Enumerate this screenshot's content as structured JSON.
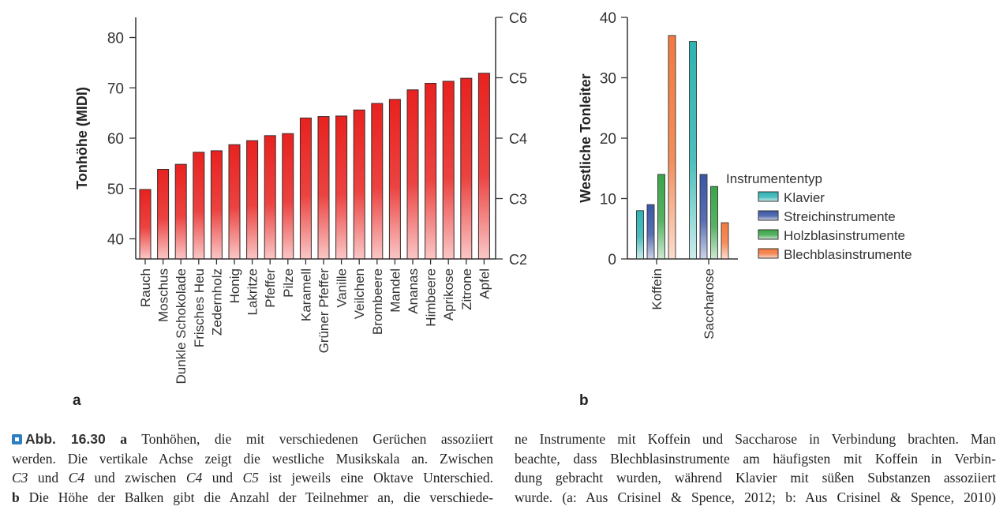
{
  "chart_data": [
    {
      "type": "bar",
      "panel": "a",
      "ylabel": "Tonhöhe (MIDI)",
      "ylim": [
        36,
        84
      ],
      "yticks": [
        40,
        50,
        60,
        70,
        80
      ],
      "secondary_yticks": [
        {
          "value": 36,
          "label": "C2"
        },
        {
          "value": 48,
          "label": "C3"
        },
        {
          "value": 60,
          "label": "C4"
        },
        {
          "value": 72,
          "label": "C5"
        },
        {
          "value": 84,
          "label": "C6"
        }
      ],
      "categories": [
        "Rauch",
        "Moschus",
        "Dunkle Schokolade",
        "Frisches Heu",
        "Zedernholz",
        "Honig",
        "Lakritze",
        "Pfeffer",
        "Pilze",
        "Karamell",
        "Grüner Pfeffer",
        "Vanille",
        "Veilchen",
        "Brombeere",
        "Mandel",
        "Ananas",
        "Himbeere",
        "Aprikose",
        "Zitrone",
        "Apfel"
      ],
      "values": [
        49.8,
        53.8,
        54.8,
        57.2,
        57.5,
        58.7,
        59.5,
        60.5,
        60.9,
        64.0,
        64.3,
        64.4,
        65.6,
        66.9,
        67.7,
        69.6,
        70.9,
        71.3,
        71.9,
        72.9
      ],
      "bar_color": "#e8221f",
      "grid": false
    },
    {
      "type": "bar",
      "panel": "b",
      "ylabel": "Westliche Tonleiter",
      "ylim": [
        0,
        40
      ],
      "yticks": [
        0,
        10,
        20,
        30,
        40
      ],
      "categories": [
        "Koffein",
        "Saccharose"
      ],
      "legend_title": "Instrumententyp",
      "legend_position": "right",
      "series": [
        {
          "name": "Klavier",
          "values": [
            8,
            36
          ],
          "color": "#2fb3b3"
        },
        {
          "name": "Streichinstrumente",
          "values": [
            9,
            14
          ],
          "color": "#3b56a6"
        },
        {
          "name": "Holzblasinstrumente",
          "values": [
            14,
            12
          ],
          "color": "#3aa548"
        },
        {
          "name": "Blechblasinstrumente",
          "values": [
            37,
            6
          ],
          "color": "#f27a3e"
        }
      ],
      "grid": false
    }
  ],
  "panel_labels": {
    "a": "a",
    "b": "b"
  },
  "caption": {
    "label": "Abb. 16.30",
    "left": [
      [
        {
          "t": " a",
          "s": "b"
        },
        {
          "t": " Tonhöhen, die mit verschiedenen Gerüchen assoziiert"
        }
      ],
      [
        {
          "t": "werden. Die vertikale Achse zeigt die westliche Musikskala an. Zwischen"
        }
      ],
      [
        {
          "t": "C3",
          "s": "i"
        },
        {
          "t": " und "
        },
        {
          "t": "C4",
          "s": "i"
        },
        {
          "t": " und zwischen "
        },
        {
          "t": "C4",
          "s": "i"
        },
        {
          "t": " und "
        },
        {
          "t": "C5",
          "s": "i"
        },
        {
          "t": " ist jeweils eine Oktave Unterschied."
        }
      ],
      [
        {
          "t": "b",
          "s": "b"
        },
        {
          "t": " Die Höhe der Balken gibt die Anzahl der Teilnehmer an, die verschiede-"
        }
      ]
    ],
    "right": [
      [
        {
          "t": "ne Instrumente mit Koffein und Saccharose in Verbindung brachten. Man"
        }
      ],
      [
        {
          "t": "beachte, dass Blechblasinstrumente am häufigsten mit Koffein in Verbin-"
        }
      ],
      [
        {
          "t": "dung gebracht wurden, während Klavier mit süßen Substanzen assoziiert"
        }
      ],
      [
        {
          "t": "wurde. (a: Aus Crisinel & Spence, 2012; b: Aus Crisinel & Spence, 2010)"
        }
      ]
    ]
  }
}
